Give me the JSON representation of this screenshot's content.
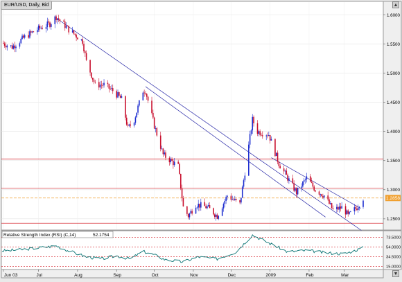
{
  "window": {
    "title": "EUR/USD, Daily, Bid"
  },
  "colors": {
    "up": "#1f2fd0",
    "down": "#c8102e",
    "rsi": "#1a7d7d",
    "hline": "#d0101a",
    "trend": "#2a2aa8",
    "price_tag": "#f0a030"
  },
  "chart_data": [
    {
      "type": "candlestick",
      "title": "EUR/USD, Daily, Bid",
      "x_tick_labels": [
        "Jun 03",
        "Jul",
        "Aug",
        "Sep",
        "Oct",
        "Nov",
        "Dec",
        "2009",
        "Feb",
        "Mar"
      ],
      "x_tick_dates": [
        "2008-06-03",
        "2008-07-01",
        "2008-08-01",
        "2008-09-01",
        "2008-10-01",
        "2008-11-01",
        "2008-12-01",
        "2009-01-01",
        "2009-02-01",
        "2009-03-01"
      ],
      "y_tick_labels": [
        "1.6000",
        "1.5500",
        "1.5000",
        "1.4500",
        "1.4000",
        "1.3500",
        "1.3000",
        "1.2500"
      ],
      "y_ticks": [
        1.6,
        1.55,
        1.5,
        1.45,
        1.4,
        1.35,
        1.3,
        1.25
      ],
      "ylim": [
        1.232,
        1.622
      ],
      "last_price": {
        "value": 1.2858,
        "label": "1.2858"
      },
      "horizontal_levels": [
        1.3525,
        1.3025,
        1.2858,
        1.2425
      ],
      "trendlines": [
        {
          "from": [
            "2008-07-16",
            1.593
          ],
          "to": [
            "2009-03-16",
            1.228
          ]
        },
        {
          "from": [
            "2008-09-24",
            1.477
          ],
          "to": [
            "2009-02-14",
            1.253
          ]
        },
        {
          "from": [
            "2009-01-02",
            1.355
          ],
          "to": [
            "2009-03-14",
            1.268
          ]
        }
      ],
      "keypoints": [
        [
          "2008-06-02",
          1.552
        ],
        [
          "2008-06-10",
          1.545
        ],
        [
          "2008-06-20",
          1.562
        ],
        [
          "2008-06-30",
          1.575
        ],
        [
          "2008-07-10",
          1.585
        ],
        [
          "2008-07-15",
          1.597
        ],
        [
          "2008-07-25",
          1.575
        ],
        [
          "2008-08-05",
          1.555
        ],
        [
          "2008-08-08",
          1.52
        ],
        [
          "2008-08-15",
          1.48
        ],
        [
          "2008-08-22",
          1.48
        ],
        [
          "2008-08-29",
          1.47
        ],
        [
          "2008-09-05",
          1.455
        ],
        [
          "2008-09-10",
          1.405
        ],
        [
          "2008-09-15",
          1.42
        ],
        [
          "2008-09-22",
          1.47
        ],
        [
          "2008-09-24",
          1.47
        ],
        [
          "2008-10-01",
          1.41
        ],
        [
          "2008-10-08",
          1.36
        ],
        [
          "2008-10-14",
          1.35
        ],
        [
          "2008-10-20",
          1.34
        ],
        [
          "2008-10-24",
          1.27
        ],
        [
          "2008-10-28",
          1.255
        ],
        [
          "2008-11-03",
          1.275
        ],
        [
          "2008-11-12",
          1.27
        ],
        [
          "2008-11-20",
          1.255
        ],
        [
          "2008-11-28",
          1.29
        ],
        [
          "2008-12-08",
          1.275
        ],
        [
          "2008-12-12",
          1.33
        ],
        [
          "2008-12-18",
          1.42
        ],
        [
          "2008-12-22",
          1.4
        ],
        [
          "2008-12-31",
          1.395
        ],
        [
          "2009-01-08",
          1.345
        ],
        [
          "2009-01-15",
          1.32
        ],
        [
          "2009-01-22",
          1.295
        ],
        [
          "2009-01-30",
          1.32
        ],
        [
          "2009-02-06",
          1.3
        ],
        [
          "2009-02-13",
          1.29
        ],
        [
          "2009-02-20",
          1.265
        ],
        [
          "2009-02-28",
          1.27
        ],
        [
          "2009-03-04",
          1.255
        ],
        [
          "2009-03-11",
          1.27
        ],
        [
          "2009-03-16",
          1.2858
        ]
      ]
    },
    {
      "type": "line",
      "title": "Relative Strength Index (RSI) (C,14)",
      "value_label": "52.1754",
      "y_tick_labels": [
        "73.5000",
        "54.0000",
        "34.5000",
        "15.0000"
      ],
      "y_ticks": [
        73.5,
        54.0,
        34.5,
        15.0
      ],
      "ylim": [
        10,
        85
      ],
      "levels": [
        73.5,
        54.0,
        34.5,
        15.0
      ],
      "keypoints": [
        [
          "2008-06-02",
          46
        ],
        [
          "2008-06-15",
          48
        ],
        [
          "2008-06-30",
          52
        ],
        [
          "2008-07-15",
          56
        ],
        [
          "2008-07-25",
          46
        ],
        [
          "2008-08-08",
          34
        ],
        [
          "2008-08-20",
          30
        ],
        [
          "2008-09-01",
          36
        ],
        [
          "2008-09-12",
          30
        ],
        [
          "2008-09-22",
          45
        ],
        [
          "2008-10-01",
          38
        ],
        [
          "2008-10-10",
          28
        ],
        [
          "2008-10-24",
          24
        ],
        [
          "2008-11-05",
          34
        ],
        [
          "2008-11-20",
          30
        ],
        [
          "2008-12-05",
          44
        ],
        [
          "2008-12-18",
          78
        ],
        [
          "2008-12-31",
          62
        ],
        [
          "2009-01-15",
          44
        ],
        [
          "2009-01-30",
          47
        ],
        [
          "2009-02-15",
          42
        ],
        [
          "2009-03-01",
          40
        ],
        [
          "2009-03-16",
          52.2
        ]
      ]
    }
  ]
}
